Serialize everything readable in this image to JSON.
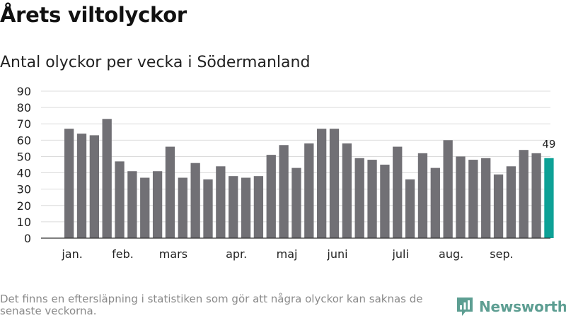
{
  "title": "Årets viltolyckor",
  "subtitle": "Antal olyckor per vecka i Södermanland",
  "footnote": "Det finns en eftersläpning i statistiken som gör att några olyckor kan saknas de senaste veckorna.",
  "brand": {
    "name": "Newsworthy"
  },
  "colors": {
    "bar": "#717075",
    "highlight": "#0da196",
    "grid": "#dcdcdc",
    "axis": "#333333",
    "brand": "#5d9e92"
  },
  "chart_data": {
    "type": "bar",
    "title": "Antal olyckor per vecka i Södermanland",
    "xlabel": "",
    "ylabel": "",
    "ylim": [
      0,
      90
    ],
    "yticks": [
      0,
      10,
      20,
      30,
      40,
      50,
      60,
      70,
      80,
      90
    ],
    "grid": true,
    "values": [
      67,
      64,
      63,
      73,
      47,
      41,
      37,
      41,
      56,
      37,
      46,
      36,
      44,
      38,
      37,
      38,
      51,
      57,
      43,
      58,
      67,
      67,
      58,
      49,
      48,
      45,
      56,
      36,
      52,
      43,
      60,
      50,
      48,
      49,
      39,
      44,
      54,
      52,
      49
    ],
    "highlight_index": 38,
    "highlight_label": "49",
    "month_labels": [
      {
        "label": "jan.",
        "bar_index": 0.25
      },
      {
        "label": "feb.",
        "bar_index": 4.25
      },
      {
        "label": "mars",
        "bar_index": 8.25
      },
      {
        "label": "apr.",
        "bar_index": 13.25
      },
      {
        "label": "maj",
        "bar_index": 17.25
      },
      {
        "label": "juni",
        "bar_index": 21.25
      },
      {
        "label": "juli",
        "bar_index": 26.25
      },
      {
        "label": "aug.",
        "bar_index": 30.25
      },
      {
        "label": "sep.",
        "bar_index": 34.25
      }
    ]
  }
}
